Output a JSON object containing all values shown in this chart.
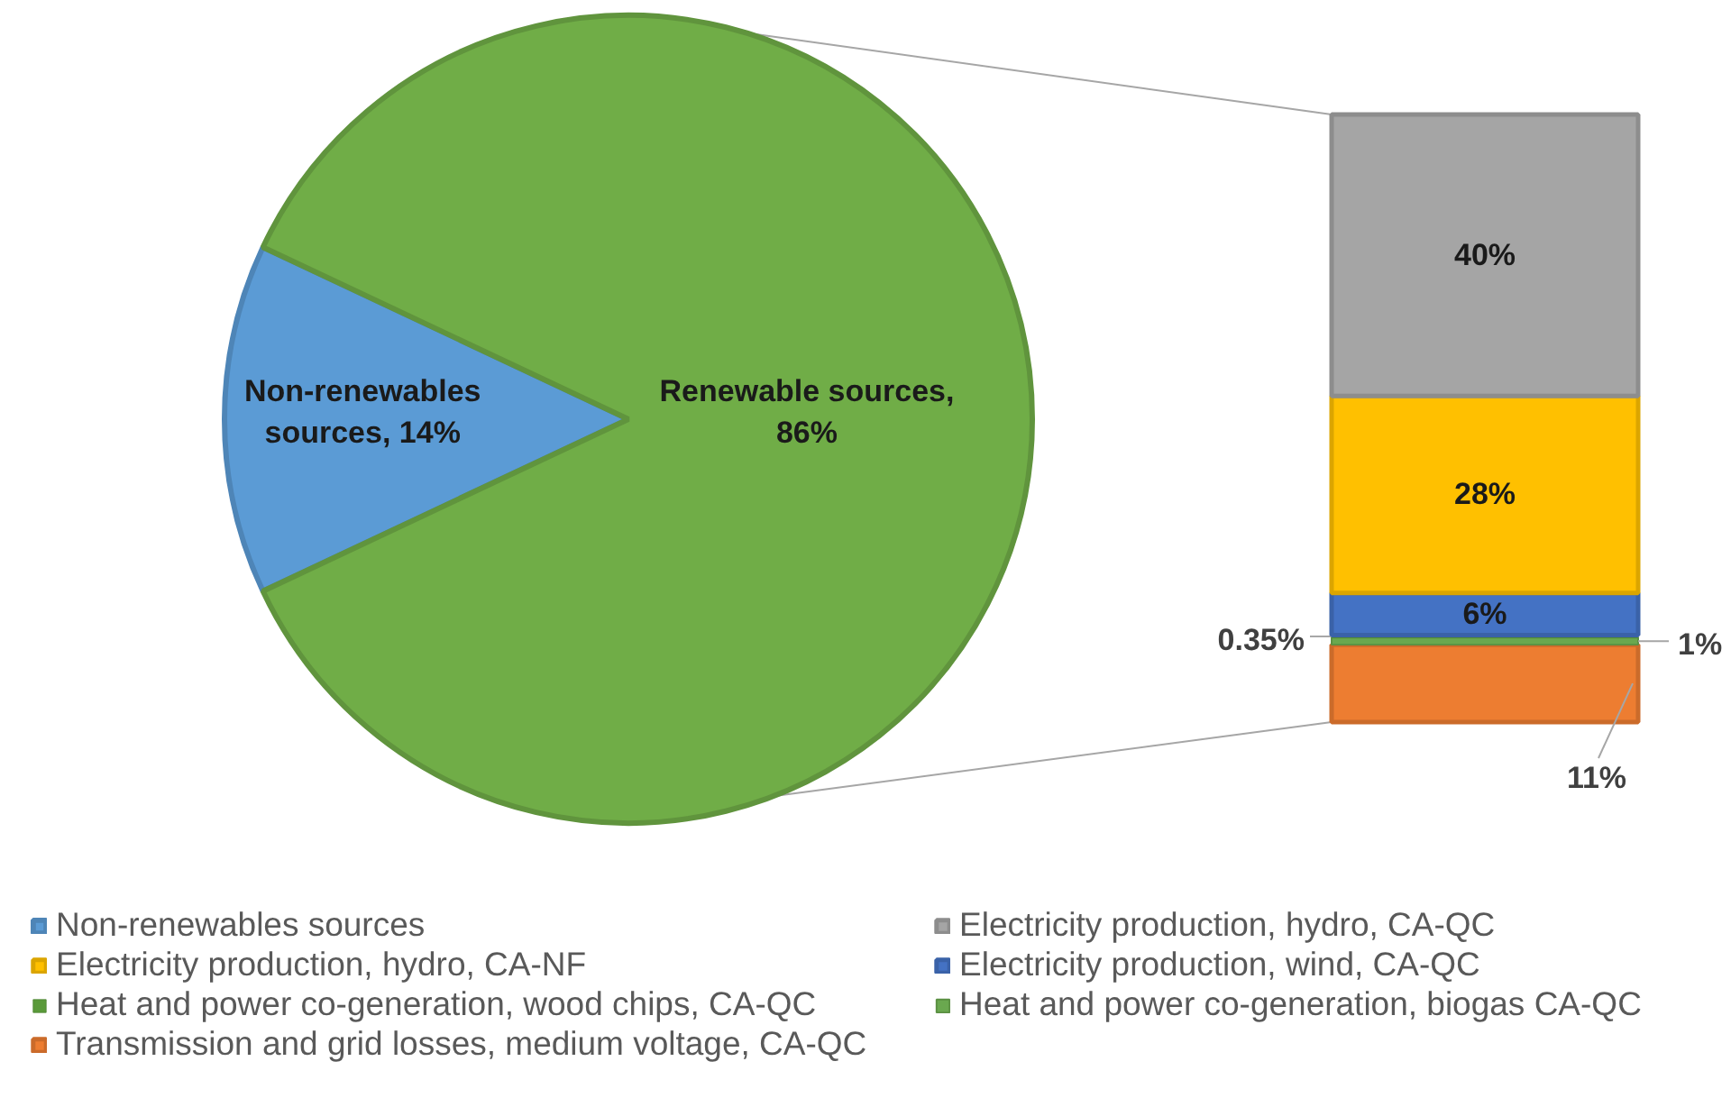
{
  "chart_data": [
    {
      "type": "pie",
      "categories": [
        "Non-renewables sources",
        null
      ],
      "values": [
        14,
        86
      ],
      "colors": [
        "#5b9bd5",
        "#70ad47"
      ],
      "value_labels": [
        "Non-renewables sources, 14%",
        "Renewable sources, 86%"
      ],
      "legend": "bottom"
    },
    {
      "type": "bar",
      "stacked": true,
      "categories": [
        null
      ],
      "legend": "bottom",
      "series": [
        {
          "name": "Transmission and grid losses, medium voltage, CA-QC",
          "color": "#ed7d31",
          "values": [
            11
          ],
          "value_labels": [
            "11%"
          ]
        },
        {
          "name": "Heat and power co-generation, biogas CA-QC",
          "color": "#6aa84f",
          "values": [
            1
          ],
          "value_labels": [
            "1%"
          ]
        },
        {
          "name": "Heat and power co-generation, wood chips, CA-QC",
          "color": "#5a9a3a",
          "values": [
            0.35
          ],
          "value_labels": [
            "0.35%"
          ]
        },
        {
          "name": "Electricity production, wind, CA-QC",
          "color": "#4472c4",
          "values": [
            6
          ],
          "value_labels": [
            "6%"
          ]
        },
        {
          "name": "Electricity production, hydro, CA-NF",
          "color": "#ffc000",
          "values": [
            28
          ],
          "value_labels": [
            "28%"
          ]
        },
        {
          "name": "Electricity production, hydro, CA-QC",
          "color": "#a5a5a5",
          "values": [
            40
          ],
          "value_labels": [
            "40%"
          ]
        }
      ]
    }
  ]
}
